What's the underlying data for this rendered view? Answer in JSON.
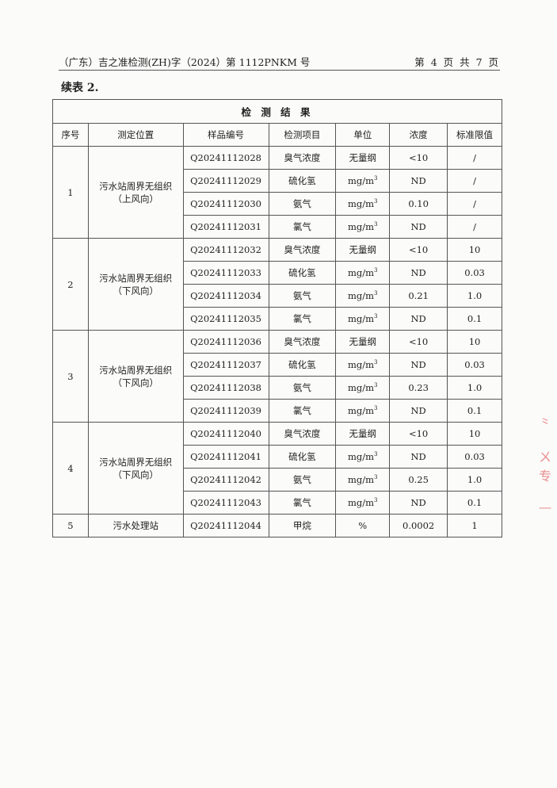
{
  "header": {
    "doc_no": "（广东）吉之准检测(ZH)字（2024）第 1112PNKM 号",
    "page": "第 4 页 共 7 页"
  },
  "caption": "续表 2.",
  "table": {
    "title": "检 测 结 果",
    "columns": [
      "序号",
      "测定位置",
      "样品编号",
      "检测项目",
      "单位",
      "浓度",
      "标准限值"
    ],
    "groups": [
      {
        "no": "1",
        "location": "污水站周界无组织",
        "wind": "（上风向）",
        "rows": [
          {
            "id": "Q20241112028",
            "item": "臭气浓度",
            "unit": "无量纲",
            "value": "<10",
            "limit": "/"
          },
          {
            "id": "Q20241112029",
            "item": "硫化氢",
            "unit": "mg/m",
            "value": "ND",
            "limit": "/"
          },
          {
            "id": "Q20241112030",
            "item": "氨气",
            "unit": "mg/m",
            "value": "0.10",
            "limit": "/"
          },
          {
            "id": "Q20241112031",
            "item": "氯气",
            "unit": "mg/m",
            "value": "ND",
            "limit": "/"
          }
        ]
      },
      {
        "no": "2",
        "location": "污水站周界无组织",
        "wind": "（下风向）",
        "rows": [
          {
            "id": "Q20241112032",
            "item": "臭气浓度",
            "unit": "无量纲",
            "value": "<10",
            "limit": "10"
          },
          {
            "id": "Q20241112033",
            "item": "硫化氢",
            "unit": "mg/m",
            "value": "ND",
            "limit": "0.03"
          },
          {
            "id": "Q20241112034",
            "item": "氨气",
            "unit": "mg/m",
            "value": "0.21",
            "limit": "1.0"
          },
          {
            "id": "Q20241112035",
            "item": "氯气",
            "unit": "mg/m",
            "value": "ND",
            "limit": "0.1"
          }
        ]
      },
      {
        "no": "3",
        "location": "污水站周界无组织",
        "wind": "（下风向）",
        "rows": [
          {
            "id": "Q20241112036",
            "item": "臭气浓度",
            "unit": "无量纲",
            "value": "<10",
            "limit": "10"
          },
          {
            "id": "Q20241112037",
            "item": "硫化氢",
            "unit": "mg/m",
            "value": "ND",
            "limit": "0.03"
          },
          {
            "id": "Q20241112038",
            "item": "氨气",
            "unit": "mg/m",
            "value": "0.23",
            "limit": "1.0"
          },
          {
            "id": "Q20241112039",
            "item": "氯气",
            "unit": "mg/m",
            "value": "ND",
            "limit": "0.1"
          }
        ]
      },
      {
        "no": "4",
        "location": "污水站周界无组织",
        "wind": "（下风向）",
        "rows": [
          {
            "id": "Q20241112040",
            "item": "臭气浓度",
            "unit": "无量纲",
            "value": "<10",
            "limit": "10"
          },
          {
            "id": "Q20241112041",
            "item": "硫化氢",
            "unit": "mg/m",
            "value": "ND",
            "limit": "0.03"
          },
          {
            "id": "Q20241112042",
            "item": "氨气",
            "unit": "mg/m",
            "value": "0.25",
            "limit": "1.0"
          },
          {
            "id": "Q20241112043",
            "item": "氯气",
            "unit": "mg/m",
            "value": "ND",
            "limit": "0.1"
          }
        ]
      },
      {
        "no": "5",
        "location": "污水处理站",
        "wind": "",
        "rows": [
          {
            "id": "Q20241112044",
            "item": "甲烷",
            "unit": "%",
            "value": "0.0002",
            "limit": "1"
          }
        ]
      }
    ]
  },
  "stamp_color": "#d44444"
}
